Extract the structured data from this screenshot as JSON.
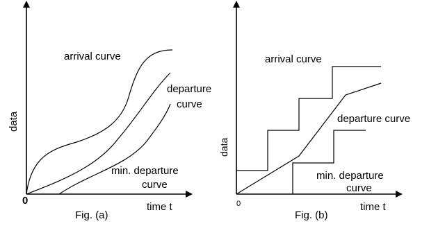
{
  "fig_a": {
    "caption": "Fig. (a)",
    "x_axis_label": "time t",
    "y_axis_label": "data",
    "origin_label": "0",
    "arrival_label": "arrival curve",
    "departure_label_line1": "departure",
    "departure_label_line2": "curve",
    "min_departure_label_line1": "min. departure",
    "min_departure_label_line2": "curve"
  },
  "fig_b": {
    "caption": "Fig. (b)",
    "x_axis_label": "time t",
    "y_axis_label": "data",
    "origin_label": "0",
    "arrival_label": "arrival curve",
    "departure_label": "departure curve",
    "min_departure_label_line1": "min. departure",
    "min_departure_label_line2": "curve"
  }
}
